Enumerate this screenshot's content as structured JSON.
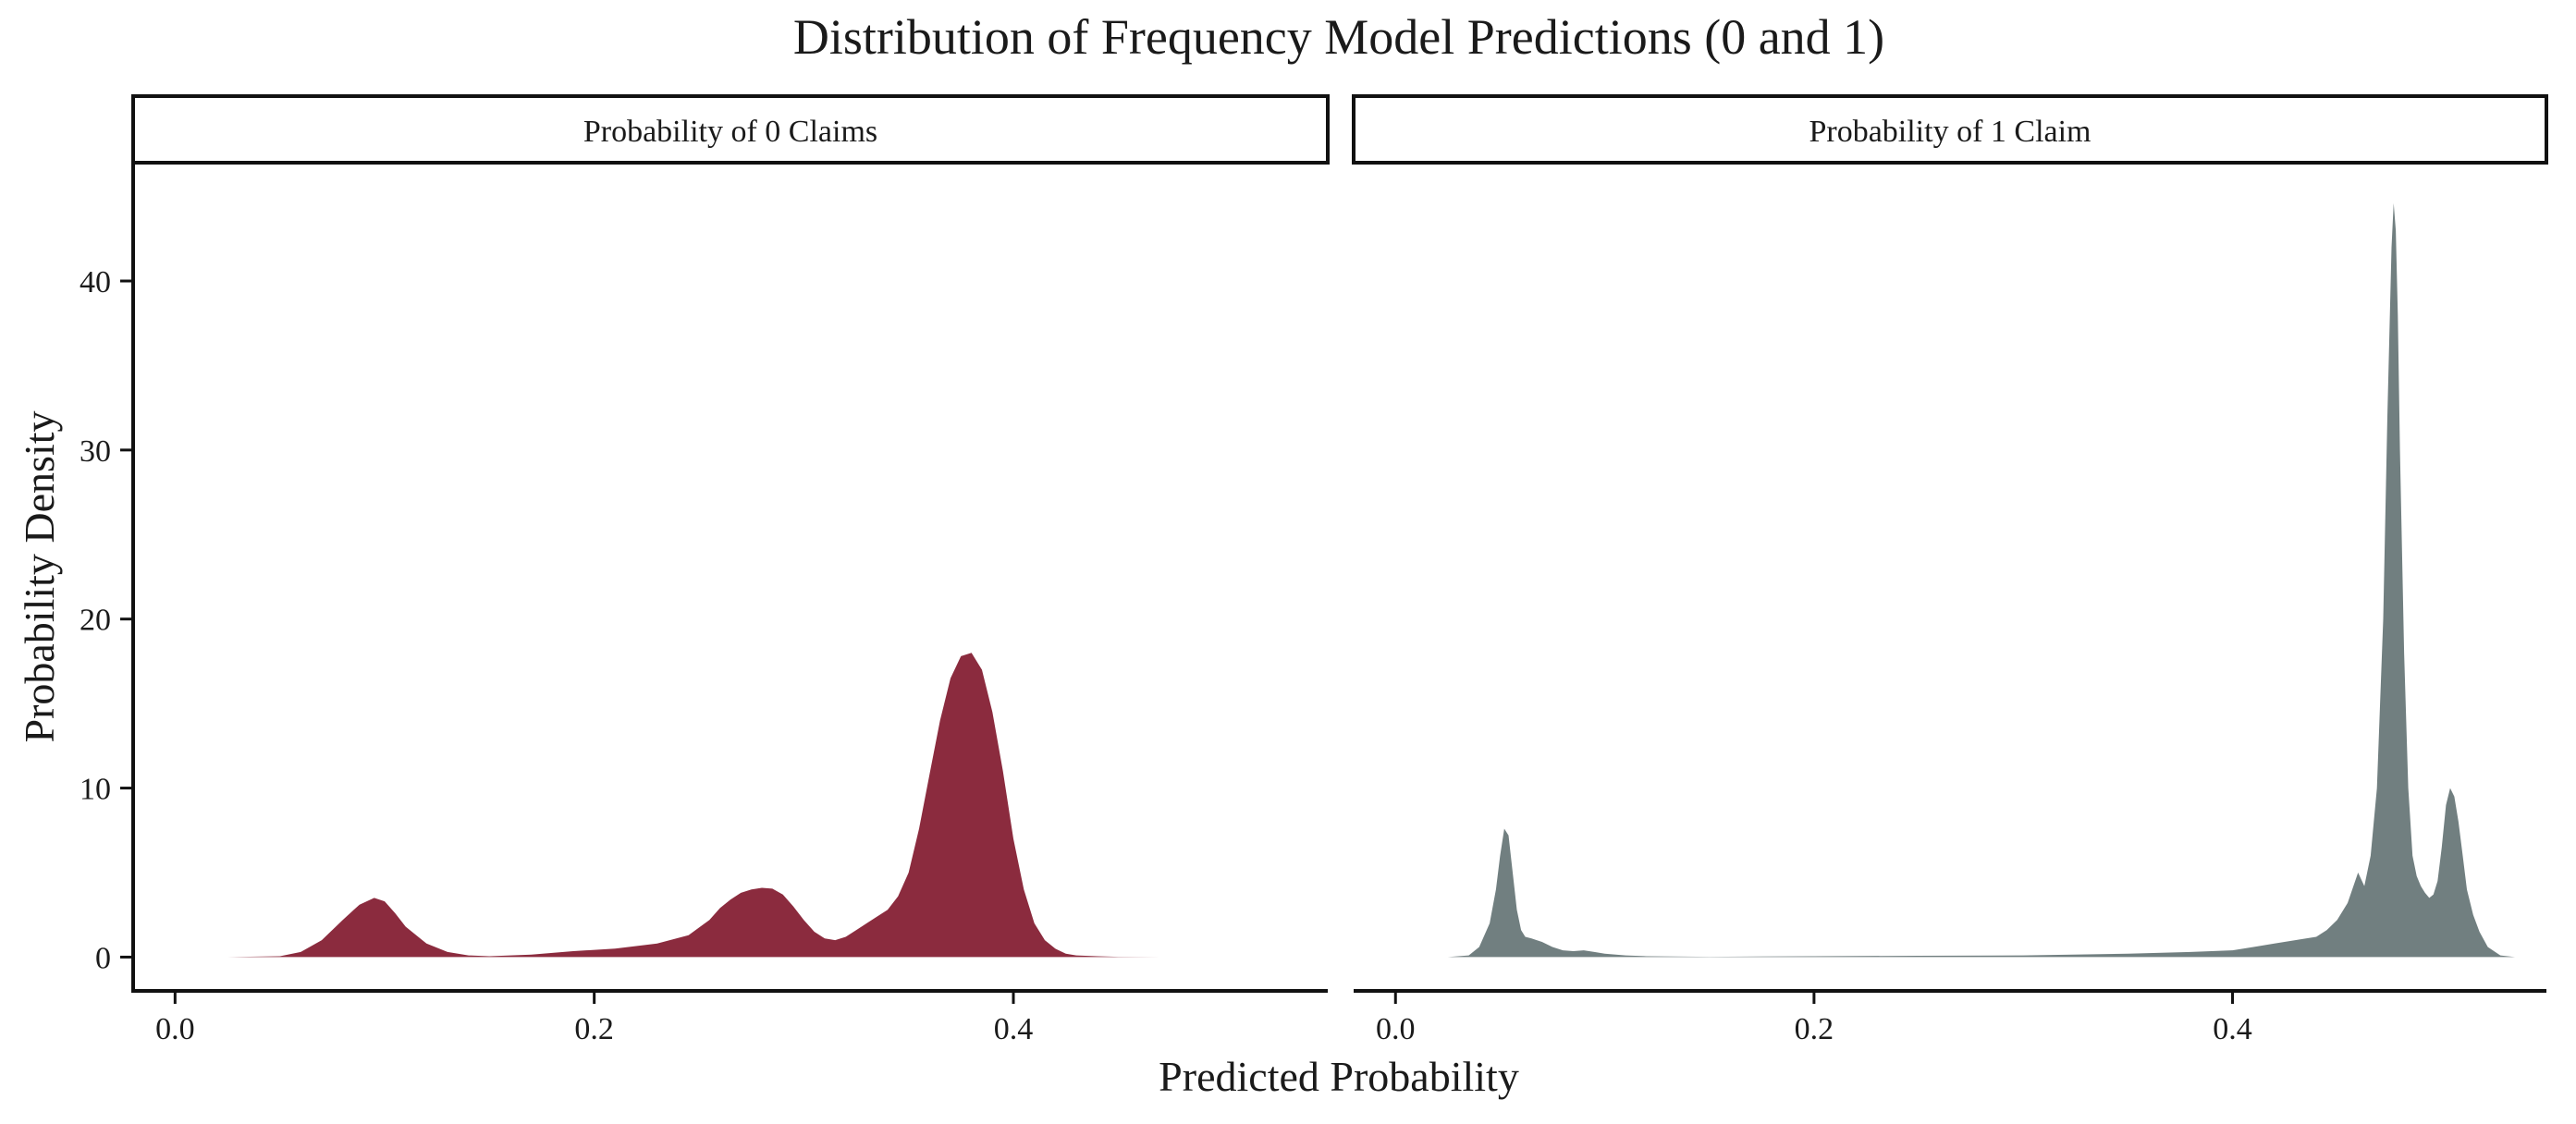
{
  "chart_data": {
    "type": "area",
    "title": "Distribution of Frequency Model Predictions (0 and 1)",
    "xlabel": "Predicted Probability",
    "ylabel": "Probability Density",
    "xlim": [
      -0.02,
      0.55
    ],
    "ylim": [
      -2,
      47
    ],
    "grid": false,
    "legend": "none",
    "x_ticks": [
      0.0,
      0.2,
      0.4
    ],
    "x_tick_labels": [
      "0.0",
      "0.2",
      "0.4"
    ],
    "y_ticks": [
      0,
      10,
      20,
      30,
      40
    ],
    "y_tick_labels": [
      "0",
      "10",
      "20",
      "30",
      "40"
    ],
    "panels": [
      {
        "strip_label": "Probability of 0 Claims",
        "color": "#8b2b3e",
        "x": [
          0.025,
          0.05,
          0.06,
          0.07,
          0.08,
          0.088,
          0.095,
          0.1,
          0.105,
          0.11,
          0.12,
          0.13,
          0.14,
          0.15,
          0.17,
          0.19,
          0.21,
          0.23,
          0.245,
          0.255,
          0.26,
          0.265,
          0.27,
          0.275,
          0.28,
          0.285,
          0.29,
          0.295,
          0.3,
          0.305,
          0.31,
          0.315,
          0.32,
          0.325,
          0.33,
          0.335,
          0.34,
          0.345,
          0.35,
          0.355,
          0.36,
          0.365,
          0.37,
          0.375,
          0.38,
          0.385,
          0.39,
          0.395,
          0.4,
          0.405,
          0.41,
          0.415,
          0.42,
          0.425,
          0.43,
          0.44,
          0.45,
          0.47,
          0.48
        ],
        "y": [
          0,
          0.05,
          0.3,
          1.0,
          2.2,
          3.1,
          3.5,
          3.3,
          2.6,
          1.8,
          0.8,
          0.3,
          0.1,
          0.05,
          0.15,
          0.35,
          0.5,
          0.8,
          1.3,
          2.2,
          2.9,
          3.4,
          3.8,
          4.0,
          4.1,
          4.05,
          3.7,
          3.0,
          2.2,
          1.5,
          1.1,
          1.0,
          1.2,
          1.6,
          2.0,
          2.4,
          2.8,
          3.6,
          5.0,
          7.6,
          10.8,
          14.0,
          16.5,
          17.8,
          18.0,
          17.0,
          14.5,
          11.0,
          7.0,
          4.0,
          2.0,
          1.0,
          0.5,
          0.2,
          0.1,
          0.05,
          0.02,
          0,
          0
        ]
      },
      {
        "strip_label": "Probability of 1 Claim",
        "color": "#717f80",
        "x": [
          0.025,
          0.035,
          0.04,
          0.045,
          0.048,
          0.05,
          0.052,
          0.054,
          0.056,
          0.058,
          0.06,
          0.062,
          0.065,
          0.07,
          0.075,
          0.08,
          0.085,
          0.09,
          0.095,
          0.1,
          0.11,
          0.12,
          0.15,
          0.2,
          0.25,
          0.3,
          0.35,
          0.38,
          0.4,
          0.41,
          0.42,
          0.43,
          0.44,
          0.445,
          0.45,
          0.455,
          0.46,
          0.463,
          0.466,
          0.469,
          0.472,
          0.474,
          0.476,
          0.477,
          0.478,
          0.479,
          0.48,
          0.482,
          0.484,
          0.486,
          0.488,
          0.49,
          0.492,
          0.494,
          0.496,
          0.498,
          0.5,
          0.502,
          0.504,
          0.506,
          0.508,
          0.51,
          0.512,
          0.515,
          0.518,
          0.522,
          0.528,
          0.535
        ],
        "y": [
          0,
          0.1,
          0.6,
          2.0,
          4.0,
          6.0,
          7.6,
          7.2,
          5.0,
          2.8,
          1.6,
          1.2,
          1.1,
          0.9,
          0.6,
          0.4,
          0.35,
          0.4,
          0.3,
          0.2,
          0.1,
          0.05,
          0.02,
          0.05,
          0.08,
          0.1,
          0.2,
          0.3,
          0.4,
          0.6,
          0.8,
          1.0,
          1.2,
          1.6,
          2.2,
          3.2,
          5.0,
          4.2,
          6.0,
          10.0,
          20.0,
          32.0,
          42.0,
          44.6,
          43.0,
          38.0,
          30.0,
          18.0,
          10.0,
          6.0,
          4.8,
          4.2,
          3.8,
          3.5,
          3.7,
          4.5,
          6.5,
          9.0,
          10.0,
          9.5,
          8.0,
          6.0,
          4.0,
          2.5,
          1.5,
          0.6,
          0.1,
          0
        ]
      }
    ]
  }
}
